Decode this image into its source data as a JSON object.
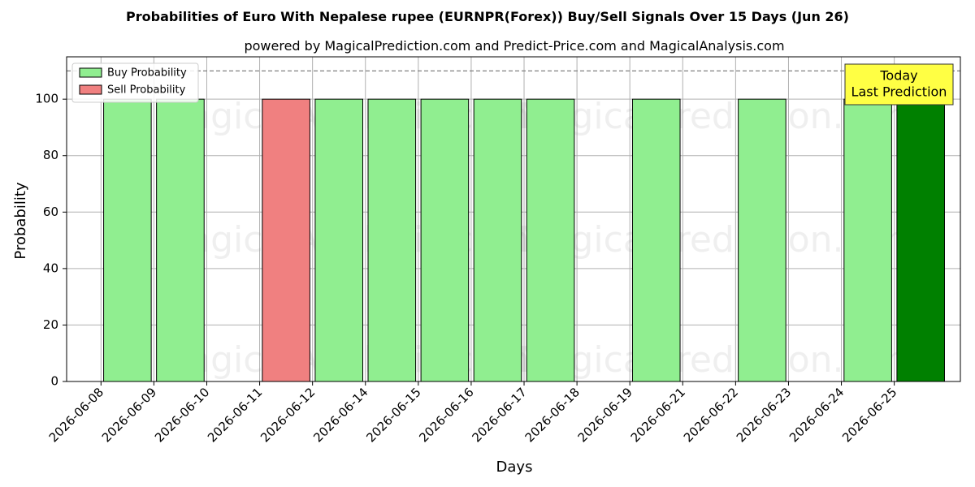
{
  "chart_data": {
    "type": "bar",
    "title": "Probabilities of Euro With Nepalese rupee (EURNPR(Forex)) Buy/Sell Signals Over 15 Days (Jun 26)",
    "subtitle": "powered by MagicalPrediction.com and Predict-Price.com and MagicalAnalysis.com",
    "xlabel": "Days",
    "ylabel": "Probability",
    "ylim": [
      0,
      115
    ],
    "yticks": [
      0,
      20,
      40,
      60,
      80,
      100
    ],
    "categories": [
      "2026-06-08",
      "2026-06-09",
      "2026-06-10",
      "2026-06-11",
      "2026-06-12",
      "2026-06-14",
      "2026-06-15",
      "2026-06-16",
      "2026-06-17",
      "2026-06-18",
      "2026-06-19",
      "2026-06-21",
      "2026-06-22",
      "2026-06-23",
      "2026-06-24",
      "2026-06-25"
    ],
    "bars": [
      {
        "x_index": 0.5,
        "value": 100,
        "kind": "buy"
      },
      {
        "x_index": 1.5,
        "value": 100,
        "kind": "buy"
      },
      {
        "x_index": 3.5,
        "value": 100,
        "kind": "sell"
      },
      {
        "x_index": 4.5,
        "value": 100,
        "kind": "buy"
      },
      {
        "x_index": 5.5,
        "value": 100,
        "kind": "buy"
      },
      {
        "x_index": 6.5,
        "value": 100,
        "kind": "buy"
      },
      {
        "x_index": 7.5,
        "value": 100,
        "kind": "buy"
      },
      {
        "x_index": 8.5,
        "value": 100,
        "kind": "buy"
      },
      {
        "x_index": 10.5,
        "value": 100,
        "kind": "buy"
      },
      {
        "x_index": 12.5,
        "value": 100,
        "kind": "buy"
      },
      {
        "x_index": 14.5,
        "value": 100,
        "kind": "buy"
      },
      {
        "x_index": 15.5,
        "value": 100,
        "kind": "today"
      }
    ],
    "reference_line": {
      "value": 110,
      "style": "dashed",
      "color": "#808080"
    },
    "legend": {
      "placement": "top-left",
      "entries": [
        {
          "label": "Buy Probability",
          "color": "#90ee90"
        },
        {
          "label": "Sell Probability",
          "color": "#f08080"
        }
      ]
    },
    "annotation": {
      "lines": [
        "Today",
        "Last Prediction"
      ],
      "placement": "top-right",
      "color": "#ffff44"
    },
    "colors": {
      "buy": "#90ee90",
      "sell": "#f08080",
      "today": "#008000",
      "grid": "#b0b0b0"
    },
    "grid": true,
    "watermarks": [
      "MagicalAnalysis.com",
      "MagicalPrediction.com"
    ]
  }
}
